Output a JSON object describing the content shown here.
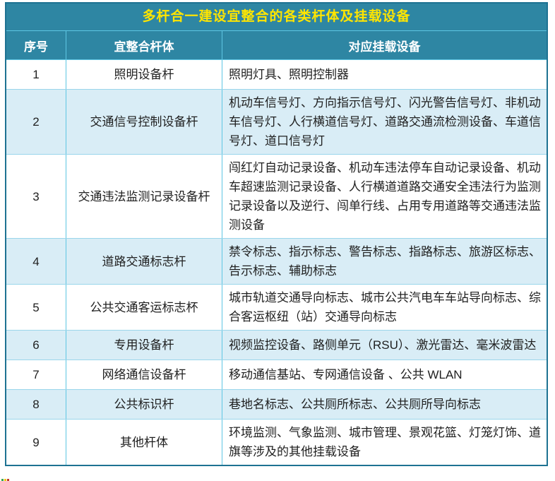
{
  "chart_data": {
    "type": "table",
    "title": "多杆合一建设宜整合的各类杆体及挂载设备",
    "columns": [
      "序号",
      "宜整合杆体",
      "对应挂载设备"
    ],
    "rows": [
      [
        "1",
        "照明设备杆",
        "照明灯具、照明控制器"
      ],
      [
        "2",
        "交通信号控制设备杆",
        "机动车信号灯、方向指示信号灯、闪光警告信号灯、非机动车信号灯、人行横道信号灯、道路交通流检测设备、车道信号灯、道口信号灯"
      ],
      [
        "3",
        "交通违法监测记录设备杆",
        "闯红灯自动记录设备、机动车违法停车自动记录设备、机动车超速监测记录设备、人行横道道路交通安全违法行为监测记录设备以及逆行、闯单行线、占用专用道路等交通违法监测设备"
      ],
      [
        "4",
        "道路交通标志杆",
        "禁令标志、指示标志、警告标志、指路标志、旅游区标志、告示标志、辅助标志"
      ],
      [
        "5",
        "公共交通客运标志杯",
        "城市轨道交通导向标志、城市公共汽电车车站导向标志、综合客运枢纽（站）交通导向标志"
      ],
      [
        "6",
        "专用设备杆",
        "视频监控设备、路侧单元（RSU）、激光雷达、毫米波雷达"
      ],
      [
        "7",
        "网络通信设备杆",
        "移动通信基站、专网通信设备 、公共 WLAN"
      ],
      [
        "8",
        "公共标识杆",
        "巷地名标志、公共厕所标志、公共厕所导向标志"
      ],
      [
        "9",
        "其他杆体",
        "环境监测、气象监测、城市管理、景观花篮、灯笼灯饰、道旗等涉及的其他挂载设备"
      ]
    ],
    "layout": {
      "zebra_striping": true,
      "title_position": "top-center",
      "column_alignment": [
        "center",
        "center",
        "left"
      ]
    }
  },
  "colors": {
    "header_bg": "#2E86A3",
    "title_text": "#FFE500",
    "header_text": "#FFFFFF",
    "row_alt_bg": "#D9EDF6",
    "grid_light": "#5EC6E3",
    "grid_horiz": "#9AD6EB",
    "outer_border": "#1E7292",
    "body_text": "#1F1F1F"
  }
}
